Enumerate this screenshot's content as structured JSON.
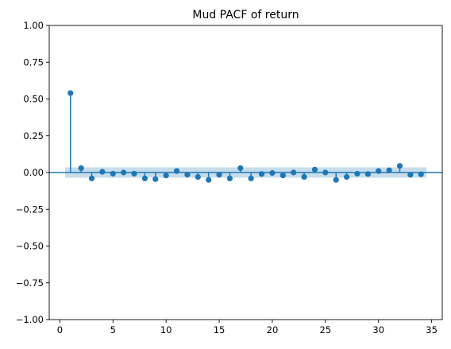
{
  "chart_data": {
    "type": "scatter",
    "title": "Mud PACF of return",
    "xlabel": "",
    "ylabel": "",
    "xlim": [
      -1,
      36
    ],
    "ylim": [
      -1.0,
      1.0
    ],
    "x_ticks": [
      0,
      5,
      10,
      15,
      20,
      25,
      30,
      35
    ],
    "y_ticks": [
      -1.0,
      -0.75,
      -0.5,
      -0.25,
      0.0,
      0.25,
      0.5,
      0.75,
      1.0
    ],
    "y_tick_labels": [
      "−1.00",
      "−0.75",
      "−0.50",
      "−0.25",
      "0.00",
      "0.25",
      "0.50",
      "0.75",
      "1.00"
    ],
    "grid": false,
    "colors": {
      "series": "#1f77b4",
      "confidence_band": "#1f77b4"
    },
    "confidence_interval": {
      "lower": -0.035,
      "upper": 0.035,
      "x_start": 0.5,
      "x_end": 34.5
    },
    "series": [
      {
        "x": [
          1,
          2,
          3,
          4,
          5,
          6,
          7,
          8,
          9,
          10,
          11,
          12,
          13,
          14,
          15,
          16,
          17,
          18,
          19,
          20,
          21,
          22,
          23,
          24,
          25,
          26,
          27,
          28,
          29,
          30,
          31,
          32,
          33,
          34
        ],
        "values": [
          0.54,
          0.03,
          -0.04,
          0.005,
          -0.008,
          0.0,
          -0.008,
          -0.04,
          -0.045,
          -0.02,
          0.01,
          -0.015,
          -0.03,
          -0.05,
          -0.015,
          -0.04,
          0.03,
          -0.04,
          -0.01,
          -0.003,
          -0.02,
          0.0,
          -0.03,
          0.02,
          0.0,
          -0.05,
          -0.03,
          -0.008,
          -0.01,
          0.01,
          0.015,
          0.045,
          -0.015,
          -0.012
        ]
      }
    ]
  }
}
